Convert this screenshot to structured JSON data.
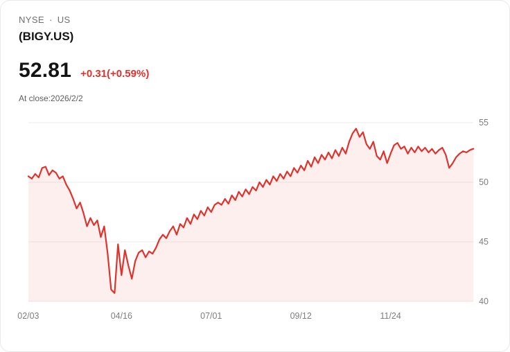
{
  "quote": {
    "exchange": "NYSE",
    "dot": "·",
    "region": "US",
    "symbol": "(BIGY.US)",
    "price": "52.81",
    "change": "+0.31(+0.59%)",
    "as_of": "At close:2026/2/2"
  },
  "colors": {
    "accent": "#e0312b",
    "area_fill": "rgba(224,49,43,0.08)",
    "grid": "#ebebeb",
    "tick_label": "#7d7d7d"
  },
  "chart_data": {
    "type": "area",
    "title": "",
    "xlabel": "",
    "ylabel": "",
    "ylim": [
      40,
      55
    ],
    "y_ticks": [
      55,
      50,
      45,
      40
    ],
    "x_tick_labels": [
      "02/03",
      "04/16",
      "07/01",
      "09/12",
      "11/24"
    ],
    "x_tick_indices": [
      0,
      27,
      53,
      79,
      105
    ],
    "grid": true,
    "legend": false,
    "values": [
      50.5,
      50.3,
      50.7,
      50.4,
      51.2,
      51.3,
      50.6,
      51.0,
      50.8,
      50.3,
      50.5,
      49.8,
      49.3,
      48.6,
      47.8,
      48.3,
      47.4,
      46.3,
      47.0,
      46.4,
      46.8,
      45.4,
      46.3,
      44.0,
      41.0,
      40.7,
      44.8,
      42.2,
      44.3,
      43.0,
      41.9,
      43.4,
      44.1,
      44.3,
      43.7,
      44.2,
      44.0,
      44.5,
      45.2,
      45.6,
      45.3,
      45.9,
      46.3,
      45.6,
      46.5,
      46.2,
      47.0,
      46.5,
      47.3,
      46.9,
      47.6,
      47.2,
      47.9,
      47.5,
      48.1,
      48.3,
      48.1,
      48.6,
      48.2,
      48.9,
      48.5,
      49.2,
      48.8,
      49.4,
      49.0,
      49.6,
      49.3,
      50.0,
      49.6,
      50.2,
      49.8,
      50.5,
      50.1,
      50.7,
      50.3,
      50.9,
      50.5,
      51.2,
      50.8,
      51.4,
      51.0,
      51.8,
      51.3,
      52.1,
      51.6,
      52.3,
      51.9,
      52.5,
      52.0,
      52.7,
      52.2,
      52.9,
      52.4,
      53.4,
      54.1,
      54.5,
      53.8,
      54.2,
      53.2,
      52.8,
      53.4,
      52.2,
      51.9,
      52.6,
      51.6,
      52.4,
      53.1,
      53.3,
      52.8,
      53.0,
      52.4,
      52.9,
      52.5,
      53.0,
      52.6,
      52.9,
      52.5,
      52.8,
      52.4,
      52.7,
      52.9,
      52.3,
      51.2,
      51.6,
      52.1,
      52.4,
      52.6,
      52.5,
      52.7,
      52.81
    ]
  }
}
